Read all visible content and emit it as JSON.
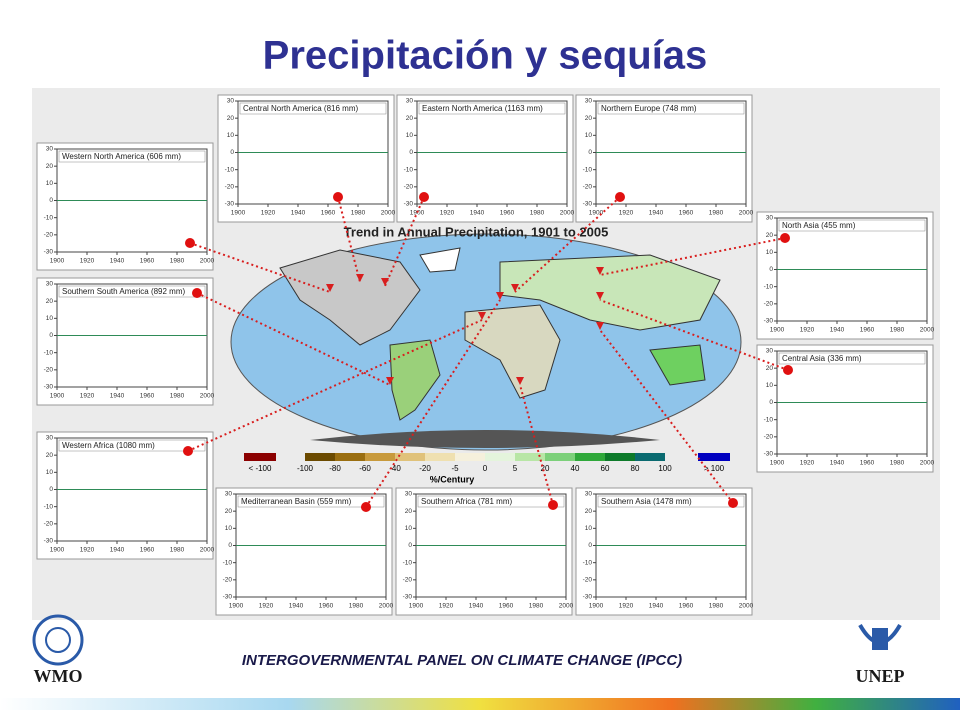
{
  "header": {
    "title": "Precipitación y sequías"
  },
  "map": {
    "title": "Trend in Annual Precipitation, 1901 to 2005",
    "legend": {
      "low_label": "< -100",
      "high_label": "> 100",
      "unit": "%/Century",
      "ticks": [
        -100,
        -80,
        -60,
        -40,
        -20,
        -5,
        0,
        5,
        20,
        40,
        60,
        80,
        100
      ],
      "low_color": "#8b0000",
      "high_color": "#0000c0",
      "colors": [
        "#6b4a00",
        "#9a6e10",
        "#c89a3c",
        "#e0c27a",
        "#efe0b0",
        "#f5f0dc",
        "#e4f4dc",
        "#b8e6a6",
        "#7cd07a",
        "#2fa83a",
        "#0d7a2a",
        "#0a6a70"
      ]
    }
  },
  "panel_axes": {
    "yticks": [
      30,
      20,
      10,
      0,
      -10,
      -20,
      -30
    ],
    "xticks": [
      1900,
      1920,
      1940,
      1960,
      1980,
      2000
    ]
  },
  "panels": [
    {
      "title": "Western North America (606 mm)"
    },
    {
      "title": "Central North America (816 mm)"
    },
    {
      "title": "Eastern North America (1163 mm)"
    },
    {
      "title": "Northern Europe (748 mm)"
    },
    {
      "title": "North Asia (455 mm)"
    },
    {
      "title": "Central Asia (336 mm)"
    },
    {
      "title": "Southern South America (892 mm)"
    },
    {
      "title": "Western Africa (1080 mm)"
    },
    {
      "title": "Mediterranean Basin (559 mm)"
    },
    {
      "title": "Southern Africa (781 mm)"
    },
    {
      "title": "Southern Asia (1478 mm)"
    }
  ],
  "footer": {
    "text": "INTERGOVERNMENTAL PANEL ON CLIMATE CHANGE (IPCC)",
    "left_logo": "WMO",
    "right_logo": "UNEP"
  }
}
